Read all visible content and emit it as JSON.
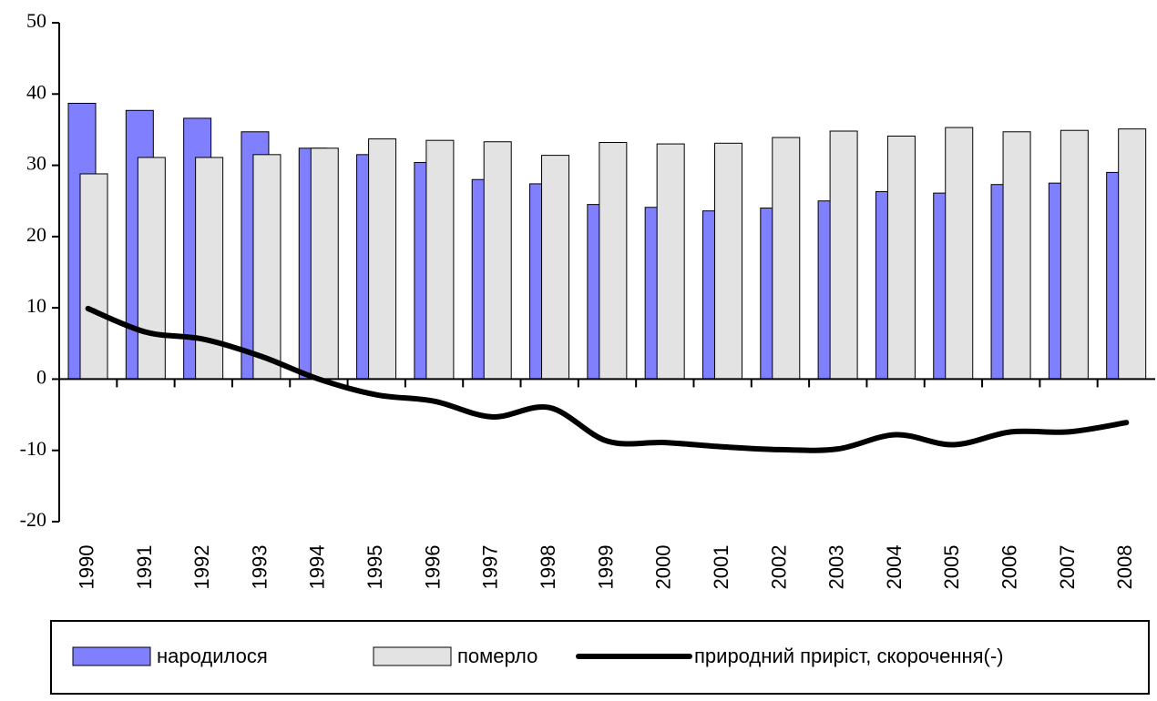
{
  "chart_data": {
    "type": "bar_line",
    "categories": [
      "1990",
      "1991",
      "1992",
      "1993",
      "1994",
      "1995",
      "1996",
      "1997",
      "1998",
      "1999",
      "2000",
      "2001",
      "2002",
      "2003",
      "2004",
      "2005",
      "2006",
      "2007",
      "2008"
    ],
    "series": [
      {
        "name": "народилося",
        "type": "bar",
        "color": "#8080ff",
        "values": [
          38.7,
          37.7,
          36.6,
          34.7,
          32.4,
          31.5,
          30.4,
          28.0,
          27.4,
          24.5,
          24.1,
          23.6,
          24.0,
          25.0,
          26.3,
          26.1,
          27.3,
          27.5,
          29.0
        ]
      },
      {
        "name": "померло",
        "type": "bar",
        "color": "#e3e3e3",
        "values": [
          28.8,
          31.1,
          31.1,
          31.5,
          32.4,
          33.7,
          33.5,
          33.3,
          31.4,
          33.2,
          33.0,
          33.1,
          33.9,
          34.8,
          34.1,
          35.3,
          34.7,
          34.9,
          35.1
        ]
      },
      {
        "name": "природний приріст, скорочення(-)",
        "type": "line",
        "color": "#000000",
        "values": [
          9.9,
          6.6,
          5.6,
          3.2,
          0.0,
          -2.2,
          -3.1,
          -5.3,
          -4.0,
          -8.7,
          -8.9,
          -9.5,
          -9.9,
          -9.8,
          -7.8,
          -9.2,
          -7.4,
          -7.4,
          -6.1
        ]
      }
    ],
    "ylim": [
      -20,
      50
    ],
    "yticks": [
      -20,
      -10,
      0,
      10,
      20,
      30,
      40,
      50
    ]
  }
}
